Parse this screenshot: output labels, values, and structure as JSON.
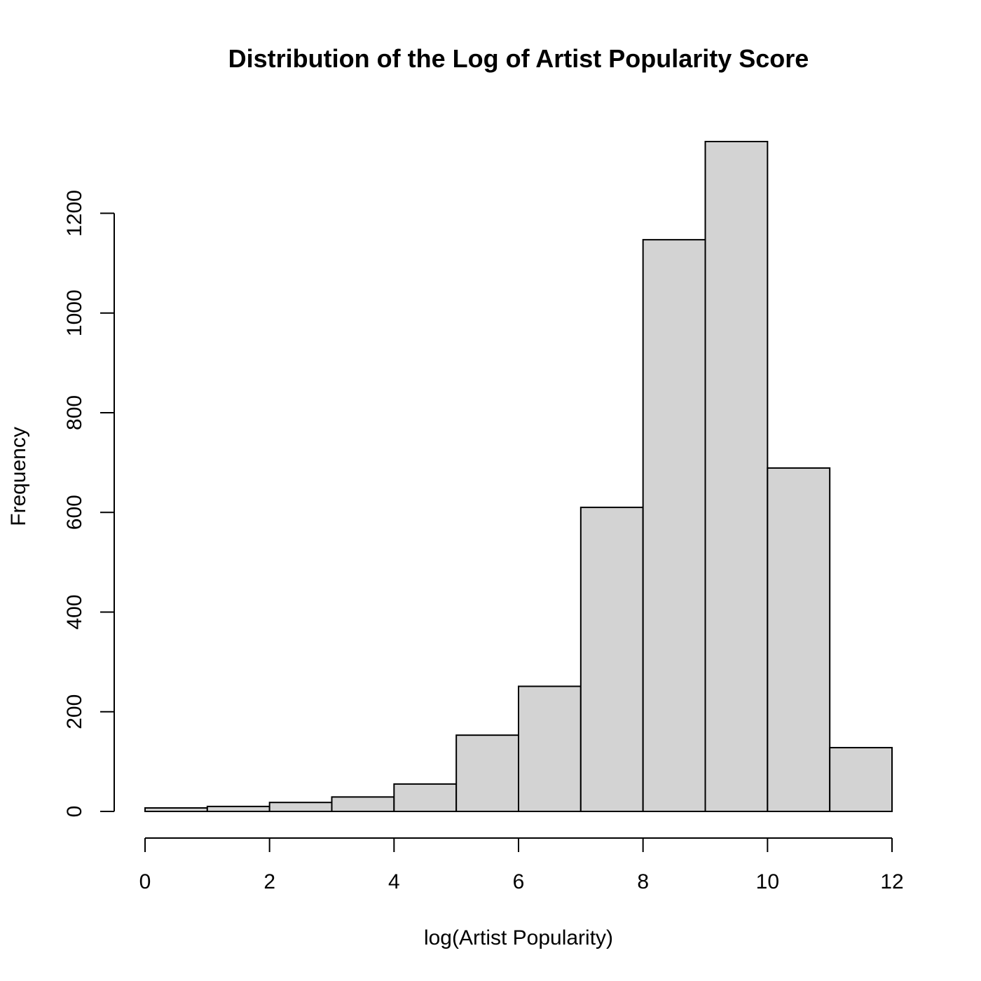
{
  "chart_data": {
    "type": "bar",
    "subtype": "histogram",
    "title": "Distribution of the Log of Artist Popularity Score",
    "xlabel": "log(Artist Popularity)",
    "ylabel": "Frequency",
    "bins": [
      {
        "from": 0,
        "to": 1,
        "count": 7
      },
      {
        "from": 1,
        "to": 2,
        "count": 10
      },
      {
        "from": 2,
        "to": 3,
        "count": 18
      },
      {
        "from": 3,
        "to": 4,
        "count": 29
      },
      {
        "from": 4,
        "to": 5,
        "count": 55
      },
      {
        "from": 5,
        "to": 6,
        "count": 153
      },
      {
        "from": 6,
        "to": 7,
        "count": 251
      },
      {
        "from": 7,
        "to": 8,
        "count": 610
      },
      {
        "from": 8,
        "to": 9,
        "count": 1147
      },
      {
        "from": 9,
        "to": 10,
        "count": 1344
      },
      {
        "from": 10,
        "to": 11,
        "count": 689
      },
      {
        "from": 11,
        "to": 12,
        "count": 128
      }
    ],
    "xlim": [
      0,
      12
    ],
    "ylim": [
      0,
      1344
    ],
    "x_ticks": [
      "0",
      "2",
      "4",
      "6",
      "8",
      "10",
      "12"
    ],
    "y_ticks": [
      "0",
      "200",
      "400",
      "600",
      "800",
      "1000",
      "1200"
    ],
    "bar_color": "#d3d3d3",
    "grid": false,
    "legend": "none"
  }
}
